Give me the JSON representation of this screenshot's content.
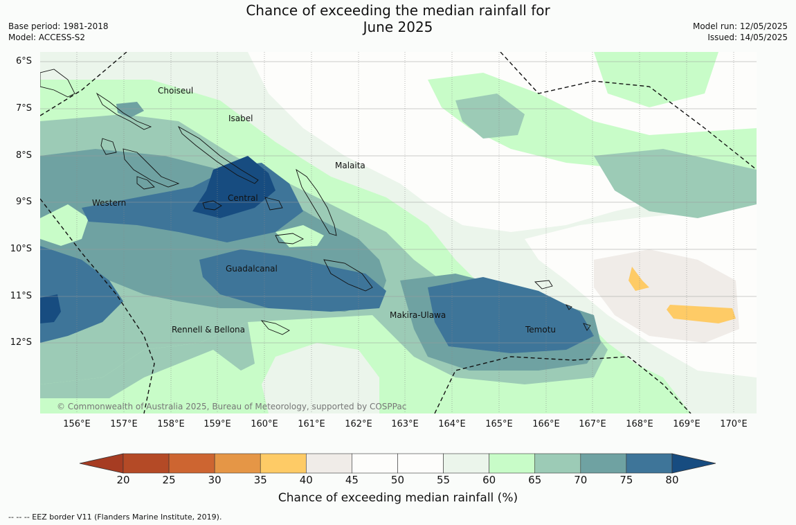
{
  "title_line1": "Chance of exceeding the median rainfall for",
  "title_line2": "June 2025",
  "meta_left": [
    "Base period: 1981-2018",
    "Model: ACCESS-S2"
  ],
  "meta_right": [
    "Model run: 12/05/2025",
    "Issued: 14/05/2025"
  ],
  "lat_labels": [
    "6°S",
    "7°S",
    "8°S",
    "9°S",
    "10°S",
    "11°S",
    "12°S"
  ],
  "lon_labels": [
    "156°E",
    "157°E",
    "158°E",
    "159°E",
    "160°E",
    "161°E",
    "162°E",
    "163°E",
    "164°E",
    "165°E",
    "166°E",
    "167°E",
    "168°E",
    "169°E",
    "170°E"
  ],
  "regions": {
    "choiseul": "Choiseul",
    "isabel": "Isabel",
    "malaita": "Malaita",
    "western": "Western",
    "central": "Central",
    "guadalcanal": "Guadalcanal",
    "makira": "Makira-Ulawa",
    "rennell": "Rennell & Bellona",
    "temotu": "Temotu"
  },
  "copyright": "© Commonwealth of Australia 2025, Bureau of Meteorology, supported by COSPPac",
  "colorbar": {
    "ticks": [
      "20",
      "25",
      "30",
      "35",
      "40",
      "45",
      "50",
      "55",
      "60",
      "65",
      "70",
      "75",
      "80"
    ],
    "colors": [
      "#b44a26",
      "#cd6531",
      "#e59646",
      "#fecb66",
      "#f0ece8",
      "#fdfdfb",
      "#fdfdfb",
      "#ebf5eb",
      "#c8fcc8",
      "#9ccbb6",
      "#6fa2a2",
      "#3e7599"
    ],
    "low_color": "#a63c22",
    "high_color": "#174c80",
    "title": "Chance of exceeding median rainfall (%)"
  },
  "footer": "--  --  -- EEZ border V11 (Flanders Marine Institute, 2019)."
}
